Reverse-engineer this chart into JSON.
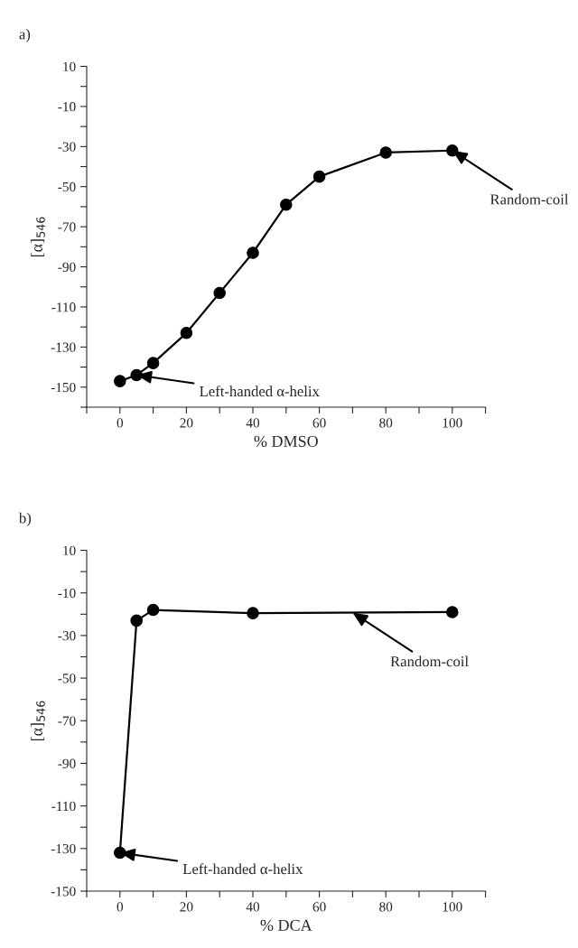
{
  "chart_data": [
    {
      "type": "line",
      "xlabel": "% DMSO",
      "ylabel": "[α]$_{546}$",
      "marker": "circle",
      "line_style": "solid",
      "grid": false,
      "x": [
        0,
        5,
        10,
        20,
        30,
        40,
        50,
        60,
        80,
        100
      ],
      "series": [
        {
          "color": "#000000",
          "values": [
            -147,
            -144,
            -138,
            -123,
            -103,
            -83,
            -59,
            -45,
            -33,
            -32
          ]
        }
      ],
      "xlim": [
        -10,
        110
      ],
      "xticks": [
        {
          "value": -10,
          "label": null
        },
        0,
        {
          "value": 10,
          "label": null
        },
        20,
        {
          "value": 30,
          "label": null
        },
        40,
        {
          "value": 50,
          "label": null
        },
        60,
        {
          "value": 70,
          "label": null
        },
        80,
        {
          "value": 90,
          "label": null
        },
        100,
        {
          "value": 110,
          "label": null
        }
      ],
      "ylim": [
        -160,
        10
      ],
      "yticks": [
        {
          "value": -160,
          "label": null
        },
        -150,
        {
          "value": -140,
          "label": null
        },
        -130,
        {
          "value": -120,
          "label": null
        },
        -110,
        {
          "value": -100,
          "label": null
        },
        -90,
        {
          "value": -80,
          "label": null
        },
        -70,
        {
          "value": -60,
          "label": null
        },
        -50,
        {
          "value": -40,
          "label": null
        },
        -30,
        {
          "value": -20,
          "label": null
        },
        -10,
        {
          "value": 0,
          "label": null
        },
        10
      ],
      "annotations": [
        "a)",
        {
          "text": "Left-handed α-helix",
          "x": 5,
          "y": -144
        },
        {
          "text": "Random-coil",
          "x": 100,
          "y": -32
        }
      ]
    },
    {
      "type": "line",
      "xlabel": "% DCA",
      "ylabel": "[α]$_{546}$",
      "marker": "circle",
      "line_style": "solid",
      "grid": false,
      "x": [
        0,
        5,
        10,
        40,
        100
      ],
      "series": [
        {
          "color": "#000000",
          "values": [
            -132,
            -23,
            -18,
            -19.5,
            -19
          ]
        }
      ],
      "xlim": [
        -10,
        110
      ],
      "xticks": [
        {
          "value": -10,
          "label": null
        },
        0,
        {
          "value": 10,
          "label": null
        },
        20,
        {
          "value": 30,
          "label": null
        },
        40,
        {
          "value": 50,
          "label": null
        },
        60,
        {
          "value": 70,
          "label": null
        },
        80,
        {
          "value": 90,
          "label": null
        },
        100,
        {
          "value": 110,
          "label": null
        }
      ],
      "ylim": [
        -150,
        10
      ],
      "yticks": [
        -150,
        {
          "value": -140,
          "label": null
        },
        -130,
        {
          "value": -120,
          "label": null
        },
        -110,
        {
          "value": -100,
          "label": null
        },
        -90,
        {
          "value": -80,
          "label": null
        },
        -70,
        {
          "value": -60,
          "label": null
        },
        -50,
        {
          "value": -40,
          "label": null
        },
        -30,
        {
          "value": -20,
          "label": null
        },
        -10,
        {
          "value": 0,
          "label": null
        },
        10
      ],
      "annotations": [
        "b)",
        {
          "text": "Left-handed α-helix",
          "x": 0,
          "y": -132
        },
        {
          "text": "Random-coil",
          "x": 70,
          "y": -19.25
        }
      ]
    }
  ]
}
